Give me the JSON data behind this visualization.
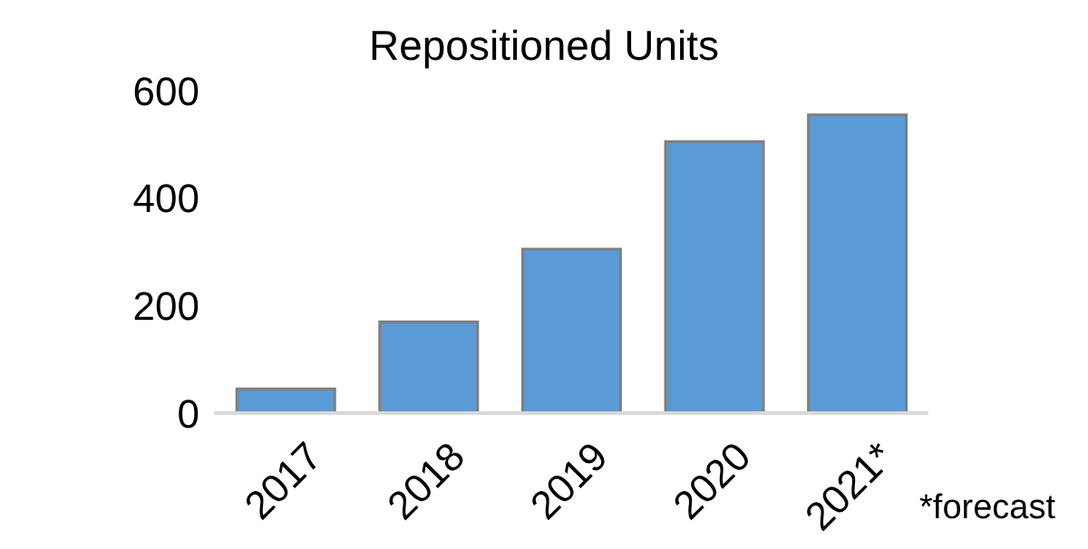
{
  "chart_data": {
    "type": "bar",
    "title": "Repositioned Units",
    "categories": [
      "2017",
      "2018",
      "2019",
      "2020",
      "2021*"
    ],
    "values": [
      45,
      170,
      305,
      505,
      555
    ],
    "color": "#5b9bd5",
    "ylim": [
      0,
      600
    ],
    "yticks": [
      0,
      200,
      400,
      600
    ],
    "grid": false,
    "annotations": [
      "*forecast"
    ]
  }
}
